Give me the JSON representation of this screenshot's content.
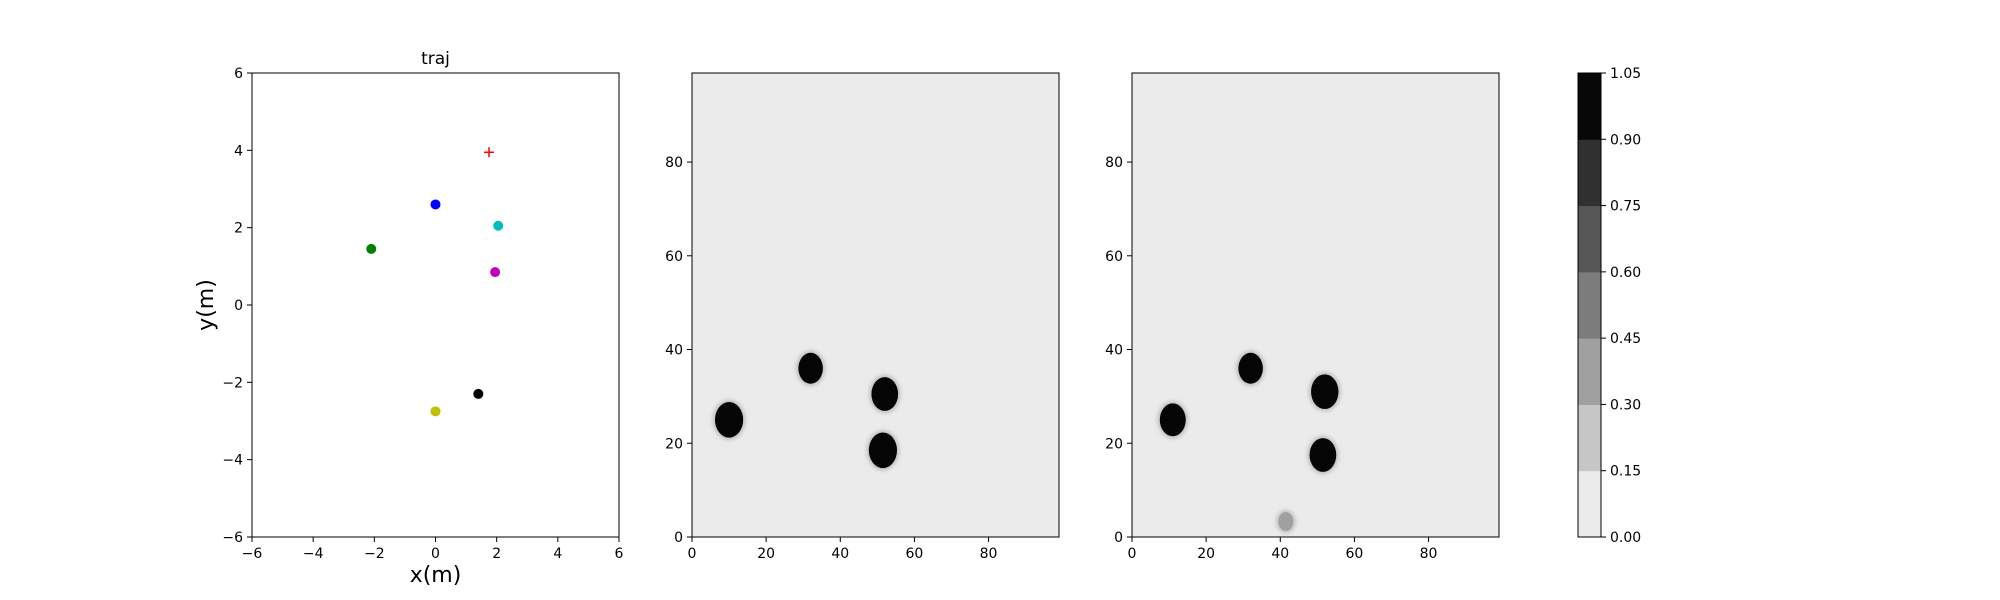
{
  "chart_data": [
    {
      "type": "scatter",
      "title": "traj",
      "xlabel": "x(m)",
      "ylabel": "y(m)",
      "xlim": [
        -6,
        6
      ],
      "ylim": [
        -6,
        6
      ],
      "xticks": [
        "−6",
        "−4",
        "−2",
        "0",
        "2",
        "4",
        "6"
      ],
      "yticks": [
        "−6",
        "−4",
        "−2",
        "0",
        "2",
        "4",
        "6"
      ],
      "grid": false,
      "points": [
        {
          "x": 0.0,
          "y": 2.6,
          "color": "#0000ff",
          "marker": "circle"
        },
        {
          "x": -2.1,
          "y": 1.45,
          "color": "#008000",
          "marker": "circle"
        },
        {
          "x": 2.05,
          "y": 2.05,
          "color": "#00bfbf",
          "marker": "circle"
        },
        {
          "x": 1.95,
          "y": 0.85,
          "color": "#bf00bf",
          "marker": "circle"
        },
        {
          "x": 1.4,
          "y": -2.3,
          "color": "#000000",
          "marker": "circle"
        },
        {
          "x": 0.0,
          "y": -2.75,
          "color": "#bfbf00",
          "marker": "circle"
        },
        {
          "x": 1.75,
          "y": 3.95,
          "color": "#ff0000",
          "marker": "plus"
        }
      ]
    },
    {
      "type": "heatmap",
      "xlim": [
        0,
        99
      ],
      "ylim": [
        0,
        99
      ],
      "xticks": [
        "0",
        "20",
        "40",
        "60",
        "80"
      ],
      "yticks": [
        "0",
        "20",
        "40",
        "60",
        "80"
      ],
      "background": "#ebebeb",
      "blobs": [
        {
          "cx": 10,
          "cy": 25,
          "r": 3.8,
          "value": 1.0
        },
        {
          "cx": 32,
          "cy": 36,
          "r": 3.3,
          "value": 1.0
        },
        {
          "cx": 52,
          "cy": 30.5,
          "r": 3.6,
          "value": 1.0
        },
        {
          "cx": 51.5,
          "cy": 18.5,
          "r": 3.8,
          "value": 1.0
        }
      ]
    },
    {
      "type": "heatmap",
      "xlim": [
        0,
        99
      ],
      "ylim": [
        0,
        99
      ],
      "xticks": [
        "0",
        "20",
        "40",
        "60",
        "80"
      ],
      "yticks": [
        "0",
        "20",
        "40",
        "60",
        "80"
      ],
      "background": "#ebebeb",
      "blobs": [
        {
          "cx": 11,
          "cy": 25,
          "r": 3.5,
          "value": 1.0
        },
        {
          "cx": 32,
          "cy": 36,
          "r": 3.3,
          "value": 1.0
        },
        {
          "cx": 52,
          "cy": 31,
          "r": 3.7,
          "value": 1.0
        },
        {
          "cx": 51.5,
          "cy": 17.5,
          "r": 3.6,
          "value": 1.0
        },
        {
          "cx": 41.5,
          "cy": 3.3,
          "r": 2.0,
          "value": 0.25
        }
      ]
    },
    {
      "type": "colorbar",
      "levels": [
        "0.00",
        "0.15",
        "0.30",
        "0.45",
        "0.60",
        "0.75",
        "0.90",
        "1.05"
      ],
      "colors": [
        "#ebebeb",
        "#c6c6c6",
        "#a0a0a0",
        "#7c7c7c",
        "#575757",
        "#303030",
        "#080808"
      ]
    }
  ]
}
